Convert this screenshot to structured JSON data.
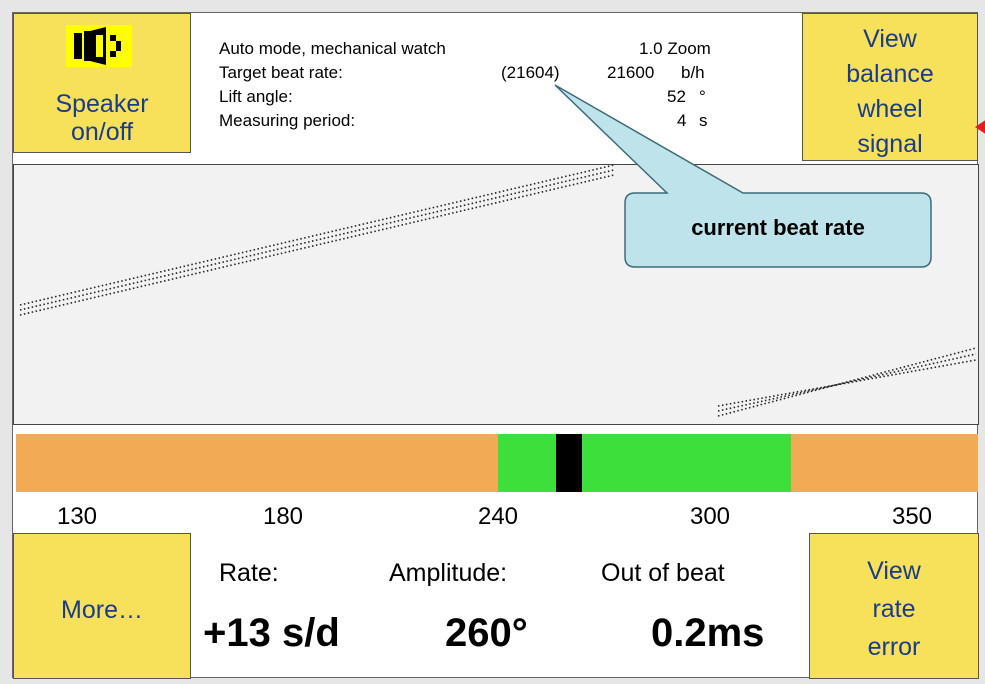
{
  "buttons": {
    "speaker": {
      "icon": "speaker-icon",
      "label": "Speaker on/off",
      "lines": [
        "Speaker",
        "on/off"
      ]
    },
    "balance": {
      "lines": [
        "View",
        "balance",
        "wheel",
        "signal"
      ]
    },
    "more": {
      "label": "More…"
    },
    "rate_error": {
      "lines": [
        "View",
        "rate",
        "error"
      ]
    }
  },
  "info": {
    "mode": "Auto mode, mechanical watch",
    "zoom": "1.0 Zoom",
    "beat_rate_label": "Target beat rate:",
    "current_beat_rate": "(21604)",
    "target_beat_rate": "21600",
    "beat_rate_unit": "b/h",
    "lift_angle_label": "Lift angle:",
    "lift_angle": "52",
    "lift_angle_unit": "°",
    "period_label": "Measuring period:",
    "period": "4",
    "period_unit": "s"
  },
  "callout": {
    "text": "current beat rate"
  },
  "amplitude_bar": {
    "scale_labels": [
      "130",
      "180",
      "240",
      "300",
      "350"
    ],
    "scale_values": [
      130,
      180,
      240,
      300,
      350
    ],
    "green_range": [
      240,
      320
    ],
    "marker_value": 260,
    "colors": {
      "track": "#f2aa55",
      "good": "#3de03a",
      "marker": "#000000"
    }
  },
  "measurements": {
    "rate_label": "Rate:",
    "rate_value": "+13 s/d",
    "amplitude_label": "Amplitude:",
    "amplitude_value": "260°",
    "beat_error_label": "Out of beat",
    "beat_error_value": "0.2ms"
  },
  "colors": {
    "button": "#f7e15a",
    "button_text": "#1a3c8a",
    "callout": "#bfe3ea"
  }
}
